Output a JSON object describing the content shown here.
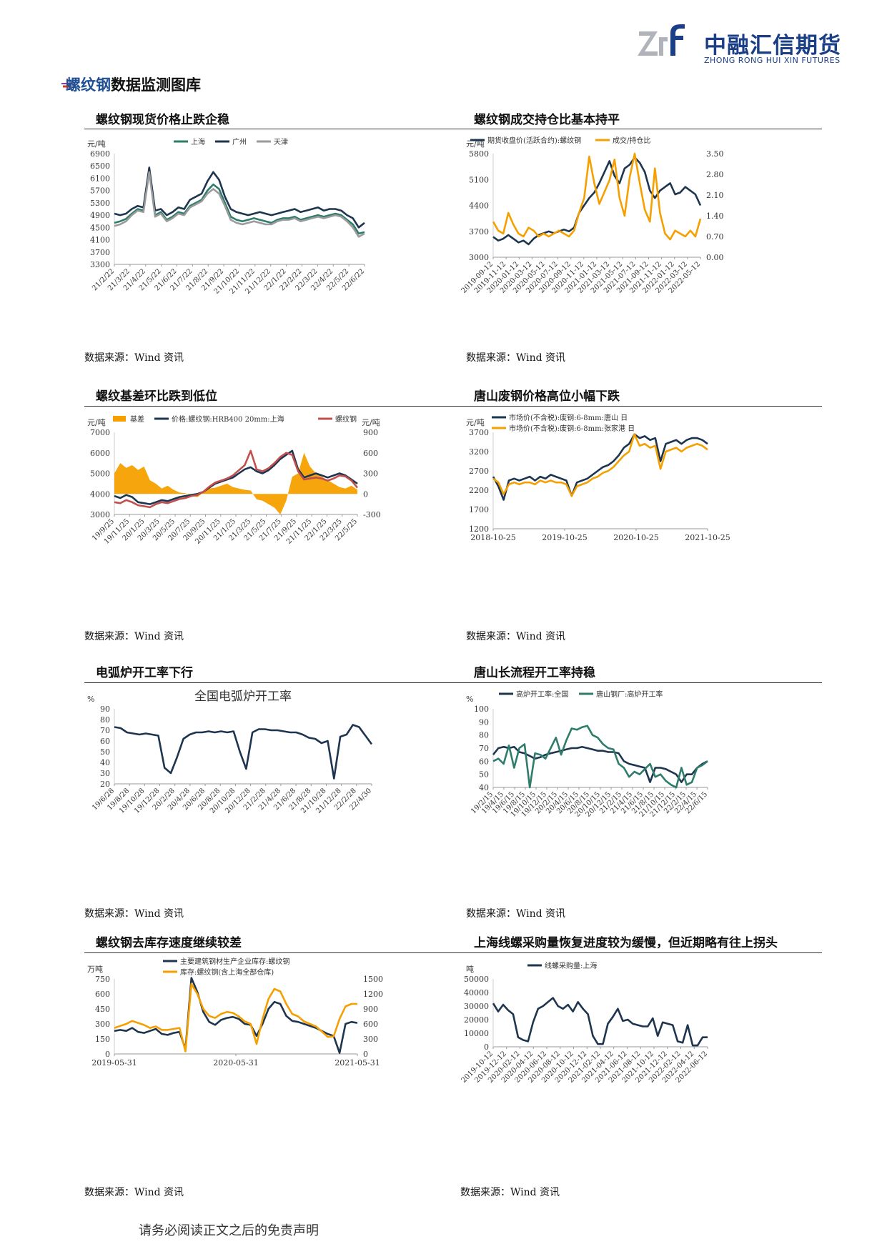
{
  "header": {
    "logo_cn": "中融汇信期货",
    "logo_en": "ZHONG RONG HUI XIN FUTURES",
    "section_title_highlight": "螺纹钢",
    "section_title_rest": "数据监测图库"
  },
  "source_text": "数据来源：Wind 资讯",
  "footer": "请务必阅读正文之后的免责声明",
  "panels": [
    {
      "title": "螺纹钢现货价格止跌企稳"
    },
    {
      "title": "螺纹钢成交持仓比基本持平"
    },
    {
      "title": "螺纹基差环比跌到低位"
    },
    {
      "title": "唐山废钢价格高位小幅下跌"
    },
    {
      "title": "电弧炉开工率下行"
    },
    {
      "title": "唐山长流程开工率持稳"
    },
    {
      "title": "螺纹钢去库存速度继续较差"
    },
    {
      "title": "上海线螺采购量恢复进度较为缓慢，但近期略有往上拐头"
    }
  ],
  "chart_data": [
    {
      "type": "line",
      "ylabel": "元/吨",
      "yticks": [
        3300,
        3700,
        4100,
        4500,
        4900,
        5300,
        5700,
        6100,
        6500,
        6900
      ],
      "ylim": [
        3300,
        6900
      ],
      "xticks": [
        "21/2/22",
        "21/3/22",
        "21/4/22",
        "21/5/22",
        "21/6/22",
        "21/7/22",
        "21/8/22",
        "21/9/22",
        "21/10/22",
        "21/11/22",
        "21/12/22",
        "22/1/22",
        "22/2/22",
        "22/3/22",
        "22/4/22",
        "22/5/22",
        "22/6/22"
      ],
      "legend_position": "top",
      "series": [
        {
          "name": "上海",
          "color": "#2e7d6b",
          "values": [
            4650,
            4700,
            4780,
            4950,
            5100,
            5050,
            6400,
            4900,
            5000,
            4750,
            4850,
            5000,
            4950,
            5200,
            5300,
            5400,
            5700,
            5900,
            5750,
            5300,
            4850,
            4750,
            4700,
            4750,
            4800,
            4750,
            4700,
            4650,
            4750,
            4800,
            4800,
            4850,
            4750,
            4800,
            4850,
            4900,
            4850,
            4900,
            4950,
            4900,
            4750,
            4600,
            4300,
            4350
          ]
        },
        {
          "name": "广州",
          "color": "#1e3550",
          "values": [
            4950,
            4900,
            4950,
            5100,
            5200,
            5150,
            6450,
            5050,
            5100,
            4900,
            5000,
            5150,
            5100,
            5400,
            5500,
            5600,
            6000,
            6300,
            6050,
            5500,
            5100,
            5000,
            4950,
            4900,
            4950,
            5000,
            4950,
            4900,
            4950,
            5000,
            5050,
            5100,
            5000,
            5050,
            5100,
            5150,
            5050,
            5100,
            5100,
            5050,
            4900,
            4800,
            4500,
            4650
          ]
        },
        {
          "name": "天津",
          "color": "#9b9b9b",
          "values": [
            4550,
            4600,
            4700,
            4900,
            5050,
            5000,
            6300,
            4850,
            4950,
            4700,
            4800,
            4950,
            4900,
            5150,
            5250,
            5350,
            5600,
            5750,
            5600,
            5200,
            4750,
            4650,
            4600,
            4650,
            4700,
            4650,
            4600,
            4600,
            4700,
            4750,
            4750,
            4800,
            4700,
            4750,
            4800,
            4850,
            4800,
            4850,
            4900,
            4850,
            4700,
            4500,
            4200,
            4300
          ]
        }
      ]
    },
    {
      "type": "line",
      "ylabel": "元/吨",
      "yticks": [
        3000,
        3700,
        4400,
        5100,
        5800
      ],
      "y2ticks": [
        "0.00",
        "0.70",
        "1.40",
        "2.10",
        "2.80",
        "3.50"
      ],
      "ylim": [
        3000,
        5800
      ],
      "y2lim": [
        0,
        3.5
      ],
      "xticks": [
        "2019-09-12",
        "2019-11-12",
        "2020-01-12",
        "2020-03-12",
        "2020-05-12",
        "2020-07-12",
        "2020-09-12",
        "2020-11-12",
        "2021-01-12",
        "2021-03-12",
        "2021-05-12",
        "2021-07-12",
        "2021-09-12",
        "2021-11-12",
        "2022-01-12",
        "2022-03-12",
        "2022-05-12"
      ],
      "legend_position": "top",
      "series": [
        {
          "name": "期货收盘价(活跃合约):螺纹钢",
          "color": "#1e3550",
          "axis": "left",
          "values": [
            3550,
            3450,
            3500,
            3600,
            3500,
            3400,
            3450,
            3350,
            3500,
            3600,
            3650,
            3700,
            3650,
            3700,
            3750,
            3700,
            3800,
            4200,
            4400,
            4600,
            4750,
            5000,
            5300,
            5600,
            5200,
            5000,
            5400,
            5500,
            5700,
            5550,
            5300,
            4800,
            4600,
            4800,
            4900,
            5000,
            4700,
            4750,
            4900,
            4800,
            4700,
            4400
          ]
        },
        {
          "name": "成交/持仓比",
          "color": "#f5a000",
          "axis": "right",
          "values": [
            1.2,
            0.9,
            0.8,
            1.5,
            1.1,
            0.8,
            0.7,
            1.0,
            0.9,
            0.7,
            0.8,
            0.7,
            0.8,
            0.9,
            0.8,
            0.7,
            0.9,
            1.5,
            2.0,
            3.4,
            2.5,
            1.8,
            2.2,
            2.6,
            3.3,
            2.0,
            1.4,
            2.7,
            3.5,
            2.5,
            1.6,
            1.2,
            3.0,
            1.5,
            0.8,
            0.6,
            0.9,
            0.8,
            0.7,
            0.9,
            0.7,
            1.3
          ]
        }
      ]
    },
    {
      "type": "line",
      "ylabel": "元/吨",
      "y2label": "元/吨",
      "yticks": [
        3000,
        4000,
        5000,
        6000,
        7000
      ],
      "y2ticks": [
        -300,
        0,
        300,
        600,
        900
      ],
      "ylim": [
        3000,
        7000
      ],
      "y2lim": [
        -300,
        900
      ],
      "xticks": [
        "19/9/25",
        "19/11/25",
        "20/1/25",
        "20/3/25",
        "20/5/25",
        "20/7/25",
        "20/9/25",
        "20/11/25",
        "21/1/25",
        "21/3/25",
        "21/5/25",
        "21/7/25",
        "21/9/25",
        "21/11/25",
        "22/1/25",
        "22/3/25",
        "22/5/25"
      ],
      "legend_position": "top",
      "series": [
        {
          "name": "基差",
          "color": "#f5a000",
          "axis": "right",
          "kind": "area",
          "values": [
            300,
            450,
            380,
            420,
            350,
            400,
            200,
            150,
            80,
            120,
            60,
            20,
            10,
            -20,
            -50,
            20,
            80,
            90,
            120,
            150,
            100,
            80,
            60,
            50,
            -80,
            -100,
            -150,
            -200,
            -300,
            -100,
            250,
            300,
            600,
            400,
            300,
            250,
            200,
            150,
            100,
            80,
            120,
            60
          ]
        },
        {
          "name": "价格:螺纹钢:HRB400 20mm:上海",
          "color": "#1e3550",
          "axis": "left",
          "values": [
            3900,
            3800,
            3950,
            3850,
            3600,
            3550,
            3500,
            3600,
            3700,
            3650,
            3750,
            3850,
            3900,
            3950,
            4000,
            4100,
            4300,
            4500,
            4600,
            4700,
            4800,
            5000,
            5200,
            5300,
            5100,
            5000,
            5150,
            5400,
            5700,
            5900,
            6100,
            5200,
            4800,
            4900,
            5000,
            4900,
            4800,
            4900,
            5000,
            4900,
            4700,
            4500
          ]
        },
        {
          "name": "螺纹钢",
          "color": "#c0504d",
          "axis": "left",
          "values": [
            3600,
            3550,
            3700,
            3600,
            3450,
            3400,
            3350,
            3500,
            3600,
            3550,
            3650,
            3750,
            3800,
            3900,
            3950,
            4100,
            4350,
            4550,
            4650,
            4750,
            4900,
            5150,
            5400,
            6100,
            5200,
            5100,
            5250,
            5500,
            5800,
            6000,
            5900,
            5100,
            4700,
            4750,
            4800,
            4750,
            4650,
            4750,
            4900,
            4850,
            4650,
            4300
          ]
        }
      ]
    },
    {
      "type": "line",
      "ylabel": "元/吨",
      "yticks": [
        1200,
        1700,
        2200,
        2700,
        3200,
        3700
      ],
      "ylim": [
        1200,
        3700
      ],
      "xticks": [
        "2018-10-25",
        "2019-10-25",
        "2020-10-25",
        "2021-10-25"
      ],
      "legend_position": "top-left",
      "series": [
        {
          "name": "市场价(不含税):废钢:6-8mm:唐山 日",
          "color": "#1e3550",
          "values": [
            2550,
            2300,
            1950,
            2450,
            2500,
            2450,
            2500,
            2550,
            2450,
            2550,
            2500,
            2600,
            2550,
            2500,
            2450,
            2050,
            2400,
            2450,
            2500,
            2600,
            2700,
            2800,
            2850,
            2950,
            3100,
            3300,
            3400,
            3650,
            3550,
            3600,
            3500,
            3550,
            2950,
            3400,
            3450,
            3500,
            3400,
            3500,
            3550,
            3550,
            3500,
            3400
          ]
        },
        {
          "name": "市场价(不含税):废钢:6-8mm:张家港 日",
          "color": "#f5a000",
          "values": [
            2500,
            2400,
            2100,
            2350,
            2400,
            2350,
            2400,
            2400,
            2350,
            2450,
            2400,
            2450,
            2400,
            2400,
            2350,
            2050,
            2300,
            2350,
            2400,
            2500,
            2550,
            2650,
            2700,
            2800,
            2950,
            3100,
            3200,
            3650,
            3350,
            3400,
            3300,
            3350,
            2750,
            3200,
            3250,
            3300,
            3200,
            3300,
            3350,
            3400,
            3350,
            3250
          ]
        }
      ]
    },
    {
      "type": "line",
      "title": "全国电弧炉开工率",
      "ylabel": "%",
      "yticks": [
        20,
        30,
        40,
        50,
        60,
        70,
        80,
        90
      ],
      "ylim": [
        20,
        90
      ],
      "xticks": [
        "19/6/28",
        "19/8/28",
        "19/10/28",
        "19/12/28",
        "20/2/28",
        "20/4/28",
        "20/6/28",
        "20/8/28",
        "20/10/28",
        "20/12/28",
        "21/2/28",
        "21/4/28",
        "21/6/28",
        "21/8/28",
        "21/10/28",
        "21/12/28",
        "22/2/28",
        "22/4/30"
      ],
      "series": [
        {
          "name": "全国电弧炉开工率",
          "color": "#1e3550",
          "values": [
            73,
            72,
            68,
            67,
            66,
            67,
            66,
            65,
            35,
            30,
            45,
            62,
            66,
            68,
            68,
            69,
            68,
            69,
            68,
            69,
            50,
            34,
            68,
            71,
            71,
            70,
            70,
            69,
            68,
            68,
            66,
            63,
            62,
            58,
            60,
            25,
            64,
            66,
            75,
            73,
            65,
            57
          ]
        }
      ]
    },
    {
      "type": "line",
      "ylabel": "%",
      "yticks": [
        40,
        50,
        60,
        70,
        80,
        90,
        100
      ],
      "ylim": [
        40,
        100
      ],
      "xticks": [
        "19/2/15",
        "19/4/15",
        "19/6/15",
        "19/8/15",
        "19/10/15",
        "19/12/15",
        "20/2/15",
        "20/4/15",
        "20/6/15",
        "20/8/15",
        "20/10/15",
        "20/12/15",
        "21/2/15",
        "21/4/15",
        "21/6/15",
        "21/8/15",
        "21/10/15",
        "21/12/15",
        "22/2/15",
        "22/4/15",
        "22/6/15"
      ],
      "legend_position": "top",
      "series": [
        {
          "name": "高炉开工率:全国",
          "color": "#1e3550",
          "values": [
            65,
            70,
            71,
            70,
            71,
            67,
            66,
            64,
            62,
            63,
            65,
            66,
            67,
            68,
            69,
            70,
            70,
            71,
            70,
            69,
            68,
            68,
            67,
            67,
            66,
            60,
            58,
            57,
            56,
            55,
            44,
            55,
            55,
            54,
            52,
            50,
            44,
            50,
            50,
            55,
            58,
            60
          ]
        },
        {
          "name": "唐山钢厂:高炉开工率",
          "color": "#2e7d6b",
          "values": [
            60,
            62,
            58,
            72,
            55,
            70,
            73,
            40,
            66,
            65,
            62,
            70,
            78,
            65,
            76,
            85,
            84,
            86,
            87,
            80,
            78,
            73,
            70,
            69,
            58,
            55,
            48,
            52,
            50,
            54,
            58,
            48,
            50,
            45,
            42,
            40,
            55,
            42,
            44,
            55,
            57,
            60
          ]
        }
      ]
    },
    {
      "type": "line",
      "ylabel": "万吨",
      "yticks": [
        0,
        150,
        300,
        450,
        600,
        750
      ],
      "y2ticks": [
        0,
        300,
        600,
        900,
        1200,
        1500
      ],
      "ylim": [
        0,
        750
      ],
      "y2lim": [
        0,
        1500
      ],
      "xticks": [
        "2019-05-31",
        "2020-05-31",
        "2021-05-31"
      ],
      "legend_position": "top",
      "series": [
        {
          "name": "主要建筑钢材生产企业库存:螺纹钢",
          "color": "#1e3550",
          "axis": "left",
          "values": [
            230,
            240,
            230,
            260,
            220,
            210,
            230,
            250,
            200,
            190,
            210,
            220,
            50,
            760,
            620,
            420,
            320,
            290,
            340,
            360,
            370,
            350,
            300,
            290,
            180,
            300,
            450,
            520,
            500,
            380,
            330,
            320,
            300,
            280,
            260,
            230,
            200,
            180,
            10,
            300,
            320,
            310
          ]
        },
        {
          "name": "库存:螺纹钢(含上海全部仓库)",
          "color": "#f5a000",
          "axis": "right",
          "values": [
            520,
            560,
            600,
            660,
            620,
            580,
            520,
            550,
            480,
            480,
            500,
            520,
            50,
            1400,
            1200,
            900,
            760,
            720,
            800,
            840,
            820,
            750,
            650,
            600,
            200,
            700,
            1100,
            1300,
            1250,
            1000,
            800,
            750,
            650,
            600,
            550,
            450,
            340,
            350,
            700,
            950,
            1000,
            1000
          ]
        }
      ]
    },
    {
      "type": "line",
      "ylabel": "吨",
      "yticks": [
        0,
        10000,
        20000,
        30000,
        40000,
        50000
      ],
      "ylim": [
        0,
        50000
      ],
      "xticks": [
        "2019-10-12",
        "2019-12-12",
        "2020-02-12",
        "2020-04-12",
        "2020-06-12",
        "2020-08-12",
        "2020-10-12",
        "2020-12-12",
        "2021-02-12",
        "2021-04-12",
        "2021-06-12",
        "2021-08-12",
        "2021-10-12",
        "2021-12-12",
        "2022-02-12",
        "2022-04-12",
        "2022-06-12"
      ],
      "legend_position": "top",
      "series": [
        {
          "name": "线螺采购量:上海",
          "color": "#1e3550",
          "values": [
            32000,
            26000,
            31000,
            27000,
            24000,
            7000,
            5000,
            4000,
            18000,
            28000,
            30000,
            33000,
            36000,
            30000,
            28000,
            31000,
            26000,
            33000,
            28000,
            24000,
            8000,
            2000,
            2000,
            17000,
            22000,
            28000,
            19000,
            20000,
            17000,
            16000,
            15000,
            15000,
            21000,
            8000,
            18000,
            17000,
            16000,
            4000,
            3000,
            16000,
            1000,
            1000,
            7000,
            7000
          ]
        }
      ]
    }
  ]
}
